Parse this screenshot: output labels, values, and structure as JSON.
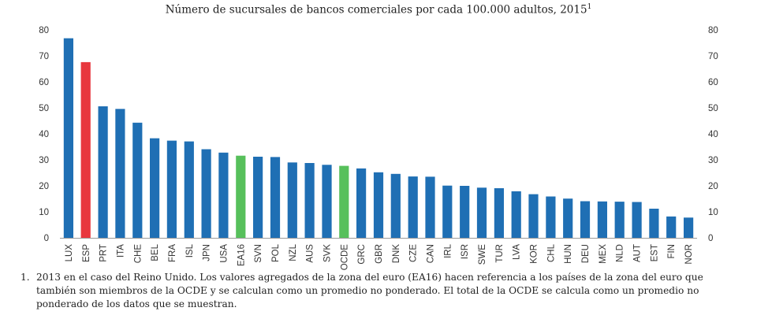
{
  "chart_data": {
    "type": "bar",
    "title": "Número de sucursales de bancos comerciales por cada 100.000 adultos, 2015",
    "title_superscript": "1",
    "xlabel": "",
    "ylabel": "",
    "ylim": [
      0,
      80
    ],
    "yticks": [
      "0",
      "10",
      "20",
      "30",
      "40",
      "50",
      "60",
      "70",
      "80"
    ],
    "secondary_axis": true,
    "grid": false,
    "colors": {
      "default": "#1f6fb4",
      "highlight": "#e8373e",
      "aggregate": "#57c05b"
    },
    "categories": [
      "LUX",
      "ESP",
      "PRT",
      "ITA",
      "CHE",
      "BEL",
      "FRA",
      "ISL",
      "JPN",
      "USA",
      "EA16",
      "SVN",
      "POL",
      "NZL",
      "AUS",
      "SVK",
      "OCDE",
      "GRC",
      "GBR",
      "DNK",
      "CZE",
      "CAN",
      "IRL",
      "ISR",
      "SWE",
      "TUR",
      "LVA",
      "KOR",
      "CHL",
      "HUN",
      "DEU",
      "MEX",
      "NLD",
      "AUT",
      "EST",
      "FIN",
      "NOR"
    ],
    "values": [
      76.8,
      67.6,
      50.6,
      49.6,
      44.3,
      38.3,
      37.4,
      37.1,
      34.1,
      32.8,
      31.6,
      31.2,
      31.1,
      29.0,
      28.8,
      28.1,
      27.7,
      26.7,
      25.2,
      24.6,
      23.6,
      23.5,
      20.1,
      20.0,
      19.3,
      19.1,
      17.9,
      16.8,
      15.9,
      15.1,
      14.1,
      14.0,
      13.9,
      13.8,
      11.2,
      8.2,
      7.8
    ],
    "bar_colors": [
      "default",
      "highlight",
      "default",
      "default",
      "default",
      "default",
      "default",
      "default",
      "default",
      "default",
      "aggregate",
      "default",
      "default",
      "default",
      "default",
      "default",
      "aggregate",
      "default",
      "default",
      "default",
      "default",
      "default",
      "default",
      "default",
      "default",
      "default",
      "default",
      "default",
      "default",
      "default",
      "default",
      "default",
      "default",
      "default",
      "default",
      "default",
      "default"
    ]
  },
  "footnote": {
    "number": "1.",
    "text": "2013 en el caso del Reino Unido. Los valores agregados de la zona del euro (EA16) hacen referencia a los países de la zona del euro que también son miembros de la OCDE y se calculan como un promedio no ponderado. El total de la OCDE se calcula como un promedio no ponderado de los datos que se muestran."
  }
}
